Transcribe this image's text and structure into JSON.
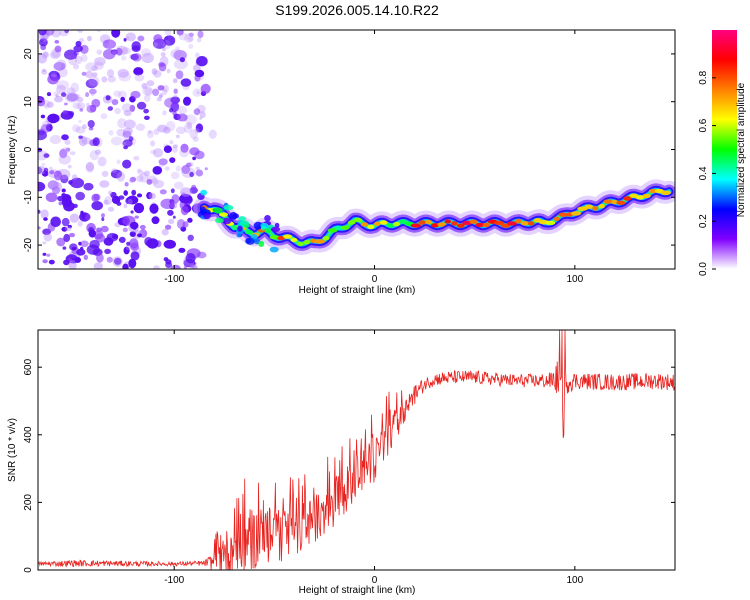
{
  "title": "S199.2026.005.14.10.R22",
  "chart_data": [
    {
      "type": "heatmap",
      "title": "S199.2026.005.14.10.R22",
      "xlabel": "Height of straight line (km)",
      "ylabel": "Frequency (Hz)",
      "xlim": [
        -168,
        150
      ],
      "ylim": [
        -25,
        25
      ],
      "xticks": [
        -100,
        0,
        100
      ],
      "yticks": [
        -20,
        -10,
        0,
        10,
        20
      ],
      "xtick_labels": [
        "-100",
        "0",
        "100"
      ],
      "ytick_labels": [
        "-20",
        "-10",
        "0",
        "10",
        "20"
      ],
      "colorbar": {
        "label": "Normalized spectral amplitude",
        "range": [
          0,
          1
        ],
        "ticks": [
          0.0,
          0.2,
          0.4,
          0.6,
          0.8
        ],
        "tick_labels": [
          "0.0",
          "0.2",
          "0.4",
          "0.6",
          "0.8"
        ],
        "colors": [
          "#ffffff",
          "#8000ff",
          "#0000ff",
          "#00ffff",
          "#00ff00",
          "#ffff00",
          "#ff8000",
          "#ff0000",
          "#ff0080"
        ]
      },
      "noise_region_x": [
        -168,
        -85
      ],
      "ridge": {
        "x": [
          -85,
          -80,
          -75,
          -70,
          -65,
          -60,
          -55,
          -50,
          -45,
          -40,
          -35,
          -30,
          -25,
          -20,
          -15,
          -10,
          -5,
          0,
          5,
          10,
          20,
          30,
          40,
          50,
          60,
          70,
          80,
          85,
          90,
          95,
          100,
          110,
          120,
          130,
          140,
          147
        ],
        "freq": [
          -12,
          -12.5,
          -14,
          -16,
          -17,
          -17.5,
          -17,
          -18,
          -18.5,
          -19,
          -19.5,
          -19.5,
          -18.5,
          -17,
          -16,
          -15,
          -15.5,
          -16,
          -15.5,
          -15.5,
          -15.5,
          -15.5,
          -15.5,
          -15.5,
          -15.5,
          -15.5,
          -15,
          -15.5,
          -14.5,
          -14,
          -13,
          -12,
          -11,
          -10,
          -9,
          -8.5
        ]
      }
    },
    {
      "type": "line",
      "xlabel": "Height of straight line (km)",
      "ylabel": "SNR (10 * v/v)",
      "xlim": [
        -168,
        150
      ],
      "ylim": [
        0,
        710
      ],
      "xticks": [
        -100,
        0,
        100
      ],
      "yticks": [
        0,
        200,
        400,
        600
      ],
      "xtick_labels": [
        "-100",
        "0",
        "100"
      ],
      "ytick_labels": [
        "0",
        "200",
        "400",
        "600"
      ],
      "series": [
        {
          "name": "SNR",
          "color": "#e8231f",
          "envelope": {
            "x": [
              -168,
              -150,
              -100,
              -85,
              -80,
              -75,
              -70,
              -60,
              -50,
              -40,
              -30,
              -20,
              -10,
              0,
              5,
              10,
              15,
              20,
              25,
              30,
              40,
              50,
              60,
              70,
              80,
              88,
              92,
              94,
              96,
              100,
              120,
              140,
              150
            ],
            "mean": [
              18,
              20,
              18,
              20,
              25,
              40,
              70,
              90,
              100,
              110,
              150,
              200,
              260,
              330,
              380,
              420,
              460,
              520,
              550,
              565,
              570,
              570,
              565,
              560,
              560,
              560,
              570,
              470,
              560,
              560,
              555,
              560,
              555
            ],
            "noise": [
              6,
              10,
              6,
              8,
              30,
              70,
              90,
              90,
              80,
              80,
              70,
              70,
              70,
              70,
              60,
              60,
              40,
              30,
              20,
              20,
              20,
              20,
              20,
              20,
              20,
              25,
              60,
              140,
              40,
              25,
              25,
              25,
              25
            ]
          }
        }
      ]
    }
  ]
}
